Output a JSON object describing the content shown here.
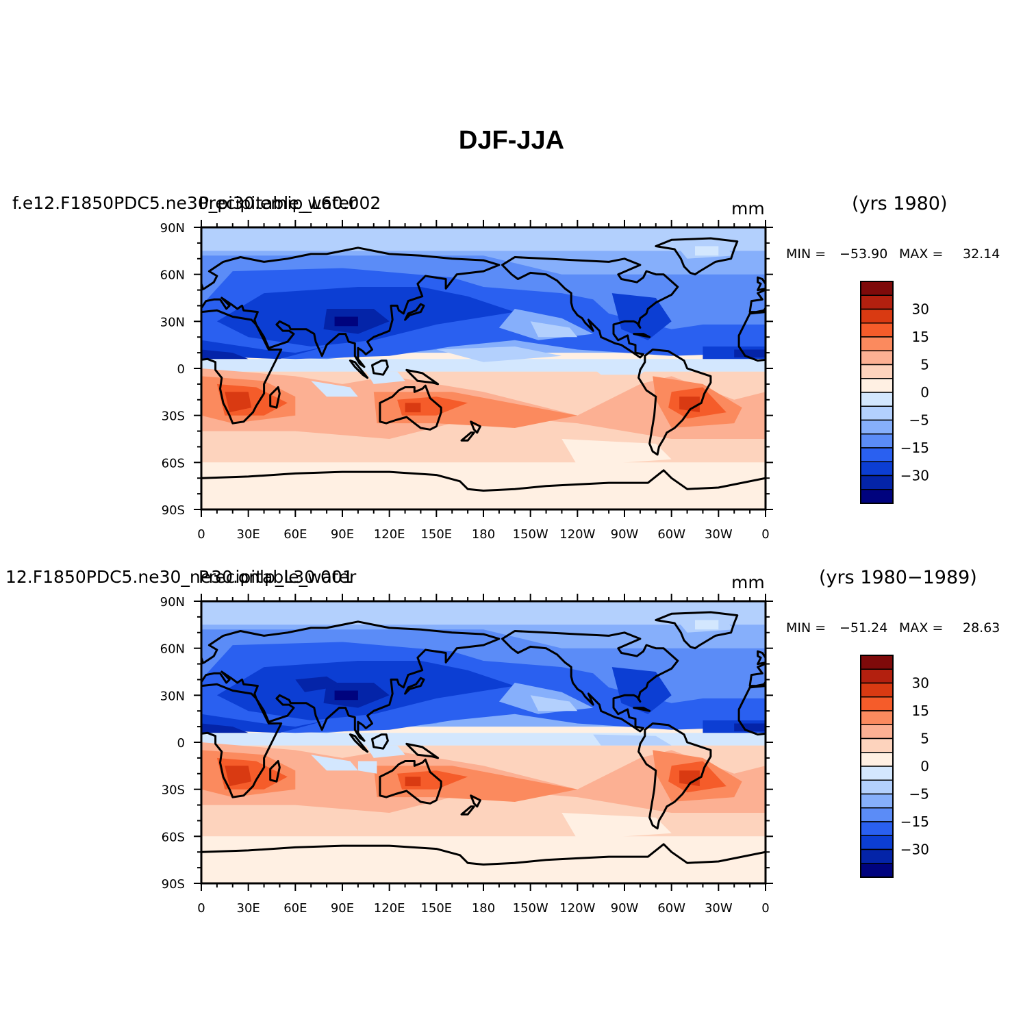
{
  "title": "DJF-JJA",
  "panels": [
    {
      "case_name": "f.e12.F1850PDC5.ne30_pi30.emip_L60.002",
      "variable": "Precipitable_water",
      "units": "mm",
      "years": "(yrs  1980)",
      "min_label": "MIN =",
      "min_value": "−53.90",
      "max_label": "MAX =",
      "max_value": "32.14",
      "variant": 0
    },
    {
      "case_name": "12.F1850PDC5.ne30_ne30.onlp_L30.001",
      "variable": "Precipitable_water",
      "units": "mm",
      "years": "(yrs  1980−1989)",
      "min_label": "MIN =",
      "min_value": "−51.24",
      "max_label": "MAX =",
      "max_value": "28.63",
      "variant": 1
    }
  ],
  "axes": {
    "lat_ticks": [
      "90N",
      "60N",
      "30N",
      "0",
      "30S",
      "60S",
      "90S"
    ],
    "lon_ticks": [
      "0",
      "30E",
      "60E",
      "90E",
      "120E",
      "150E",
      "180",
      "150W",
      "120W",
      "90W",
      "60W",
      "30W",
      "0"
    ]
  },
  "colorbar": {
    "labels": [
      "30",
      "15",
      "5",
      "0",
      "−5",
      "−15",
      "−30"
    ],
    "colors": [
      "#7e0a0a",
      "#b3200f",
      "#d93a12",
      "#f55c2a",
      "#fb8a5e",
      "#fcb093",
      "#fdd3bd",
      "#fff0e3",
      "#d3e7fe",
      "#b3d0fd",
      "#86affb",
      "#5b8cf7",
      "#2a60f0",
      "#0c3ed3",
      "#0424a8",
      "#00037e"
    ]
  },
  "map_data": {
    "type": "filled-contour-map",
    "projection": "cylindrical-equidistant",
    "lon_range": [
      0,
      360
    ],
    "lat_range": [
      -90,
      90
    ],
    "coastlines": true
  }
}
